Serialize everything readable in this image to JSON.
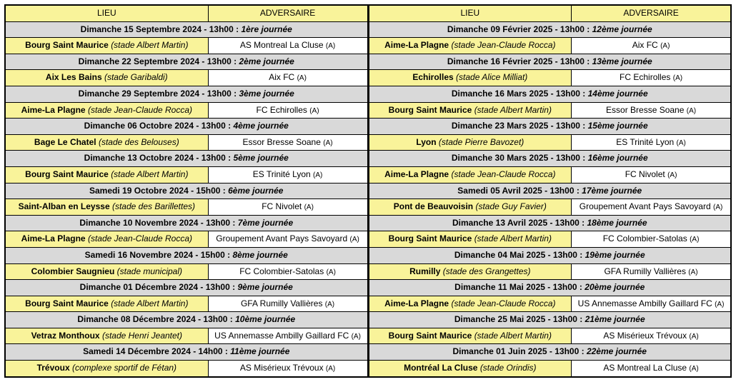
{
  "headers": {
    "lieu": "LIEU",
    "adversaire": "ADVERSAIRE"
  },
  "colors": {
    "header_bg": "#f9f39a",
    "lieu_bg": "#f9f39a",
    "date_bg": "#d9d9d9",
    "border": "#000000",
    "text": "#000000",
    "background": "#ffffff"
  },
  "left": [
    {
      "date": "Dimanche 15 Septembre 2024 - 13h00 :",
      "journee": "1ère journée",
      "lieu": "Bourg Saint Maurice",
      "stade": "(stade Albert Martin)",
      "adversaire": "AS Montreal La Cluse",
      "marker": "(A)"
    },
    {
      "date": "Dimanche 22 Septembre 2024 - 13h00 :",
      "journee": "2ème journée",
      "lieu": "Aix Les Bains",
      "stade": "(stade Garibaldi)",
      "adversaire": "Aix FC",
      "marker": "(A)"
    },
    {
      "date": "Dimanche 29 Septembre 2024 - 13h00 :",
      "journee": "3ème journée",
      "lieu": "Aime-La Plagne",
      "stade": "(stade Jean-Claude Rocca)",
      "adversaire": "FC Echirolles",
      "marker": "(A)"
    },
    {
      "date": "Dimanche 06 Octobre 2024 - 13h00 :",
      "journee": "4ème journée",
      "lieu": "Bage Le Chatel",
      "stade": "(stade des Belouses)",
      "adversaire": "Essor Bresse Soane",
      "marker": "(A)"
    },
    {
      "date": "Dimanche 13 Octobre 2024 - 13h00 :",
      "journee": "5ème journée",
      "lieu": "Bourg Saint Maurice",
      "stade": "(stade Albert Martin)",
      "adversaire": "ES Trinité Lyon",
      "marker": "(A)"
    },
    {
      "date": "Samedi 19 Octobre 2024 - 15h00 :",
      "journee": "6ème journée",
      "lieu": "Saint-Alban en Leysse",
      "stade": "(stade des Barillettes)",
      "adversaire": "FC Nivolet",
      "marker": "(A)"
    },
    {
      "date": "Dimanche 10 Novembre 2024 - 13h00 :",
      "journee": "7ème journée",
      "lieu": "Aime-La Plagne",
      "stade": "(stade Jean-Claude Rocca)",
      "adversaire": "Groupement Avant Pays Savoyard",
      "marker": "(A)"
    },
    {
      "date": "Samedi 16 Novembre 2024 - 15h00 :",
      "journee": "8ème journée",
      "lieu": "Colombier Saugnieu",
      "stade": "(stade municipal)",
      "adversaire": "FC Colombier-Satolas",
      "marker": "(A)"
    },
    {
      "date": "Dimanche 01 Décembre 2024 - 13h00 :",
      "journee": "9ème journée",
      "lieu": "Bourg Saint Maurice",
      "stade": "(stade Albert Martin)",
      "adversaire": "GFA Rumilly Vallières",
      "marker": "(A)"
    },
    {
      "date": "Dimanche 08 Décembre 2024 - 13h00 :",
      "journee": "10ème journée",
      "lieu": "Vetraz Monthoux",
      "stade": "(stade Henri Jeantet)",
      "adversaire": "US Annemasse Ambilly Gaillard FC",
      "marker": "(A)"
    },
    {
      "date": "Samedi 14 Décembre 2024 - 14h00 :",
      "journee": "11ème journée",
      "lieu": "Trévoux",
      "stade": "(complexe sportif de Fétan)",
      "adversaire": "AS Misérieux Trévoux",
      "marker": "(A)"
    }
  ],
  "right": [
    {
      "date": "Dimanche 09 Février 2025 - 13h00 :",
      "journee": "12ème journée",
      "lieu": "Aime-La Plagne",
      "stade": "(stade Jean-Claude Rocca)",
      "adversaire": "Aix FC",
      "marker": "(A)"
    },
    {
      "date": "Dimanche 16 Février 2025 - 13h00 :",
      "journee": "13ème journée",
      "lieu": "Echirolles",
      "stade": "(stade Alice Milliat)",
      "adversaire": "FC Echirolles",
      "marker": "(A)"
    },
    {
      "date": "Dimanche 16 Mars 2025 - 13h00 :",
      "journee": "14ème journée",
      "lieu": "Bourg Saint Maurice",
      "stade": "(stade Albert Martin)",
      "adversaire": "Essor Bresse Soane",
      "marker": "(A)"
    },
    {
      "date": "Dimanche 23 Mars 2025 - 13h00 :",
      "journee": "15ème journée",
      "lieu": "Lyon",
      "stade": "(stade Pierre Bavozet)",
      "adversaire": "ES Trinité Lyon",
      "marker": "(A)"
    },
    {
      "date": "Dimanche 30 Mars 2025 - 13h00 :",
      "journee": "16ème journée",
      "lieu": "Aime-La Plagne",
      "stade": "(stade Jean-Claude Rocca)",
      "adversaire": "FC Nivolet",
      "marker": "(A)"
    },
    {
      "date": "Samedi 05 Avril 2025 - 13h00 :",
      "journee": "17ème journée",
      "lieu": "Pont de Beauvoisin",
      "stade": "(stade Guy Favier)",
      "adversaire": "Groupement Avant Pays Savoyard",
      "marker": "(A)"
    },
    {
      "date": "Dimanche 13 Avril 2025 - 13h00 :",
      "journee": "18ème journée",
      "lieu": "Bourg Saint Maurice",
      "stade": "(stade Albert Martin)",
      "adversaire": "FC Colombier-Satolas",
      "marker": "(A)"
    },
    {
      "date": "Dimanche 04 Mai 2025 - 13h00 :",
      "journee": "19ème journée",
      "lieu": "Rumilly",
      "stade": "(stade des Grangettes)",
      "adversaire": "GFA Rumilly Vallières",
      "marker": "(A)"
    },
    {
      "date": "Dimanche 11 Mai 2025 - 13h00 :",
      "journee": "20ème journée",
      "lieu": "Aime-La Plagne",
      "stade": "(stade Jean-Claude Rocca)",
      "adversaire": "US Annemasse Ambilly Gaillard FC",
      "marker": "(A)"
    },
    {
      "date": "Dimanche 25 Mai 2025 - 13h00 :",
      "journee": "21ème journée",
      "lieu": "Bourg Saint Maurice",
      "stade": "(stade Albert Martin)",
      "adversaire": "AS Misérieux Trévoux",
      "marker": "(A)"
    },
    {
      "date": "Dimanche 01 Juin 2025 - 13h00 :",
      "journee": "22ème journée",
      "lieu": "Montréal La Cluse",
      "stade": "(stade Orindis)",
      "adversaire": "AS Montreal La Cluse",
      "marker": "(A)"
    }
  ]
}
